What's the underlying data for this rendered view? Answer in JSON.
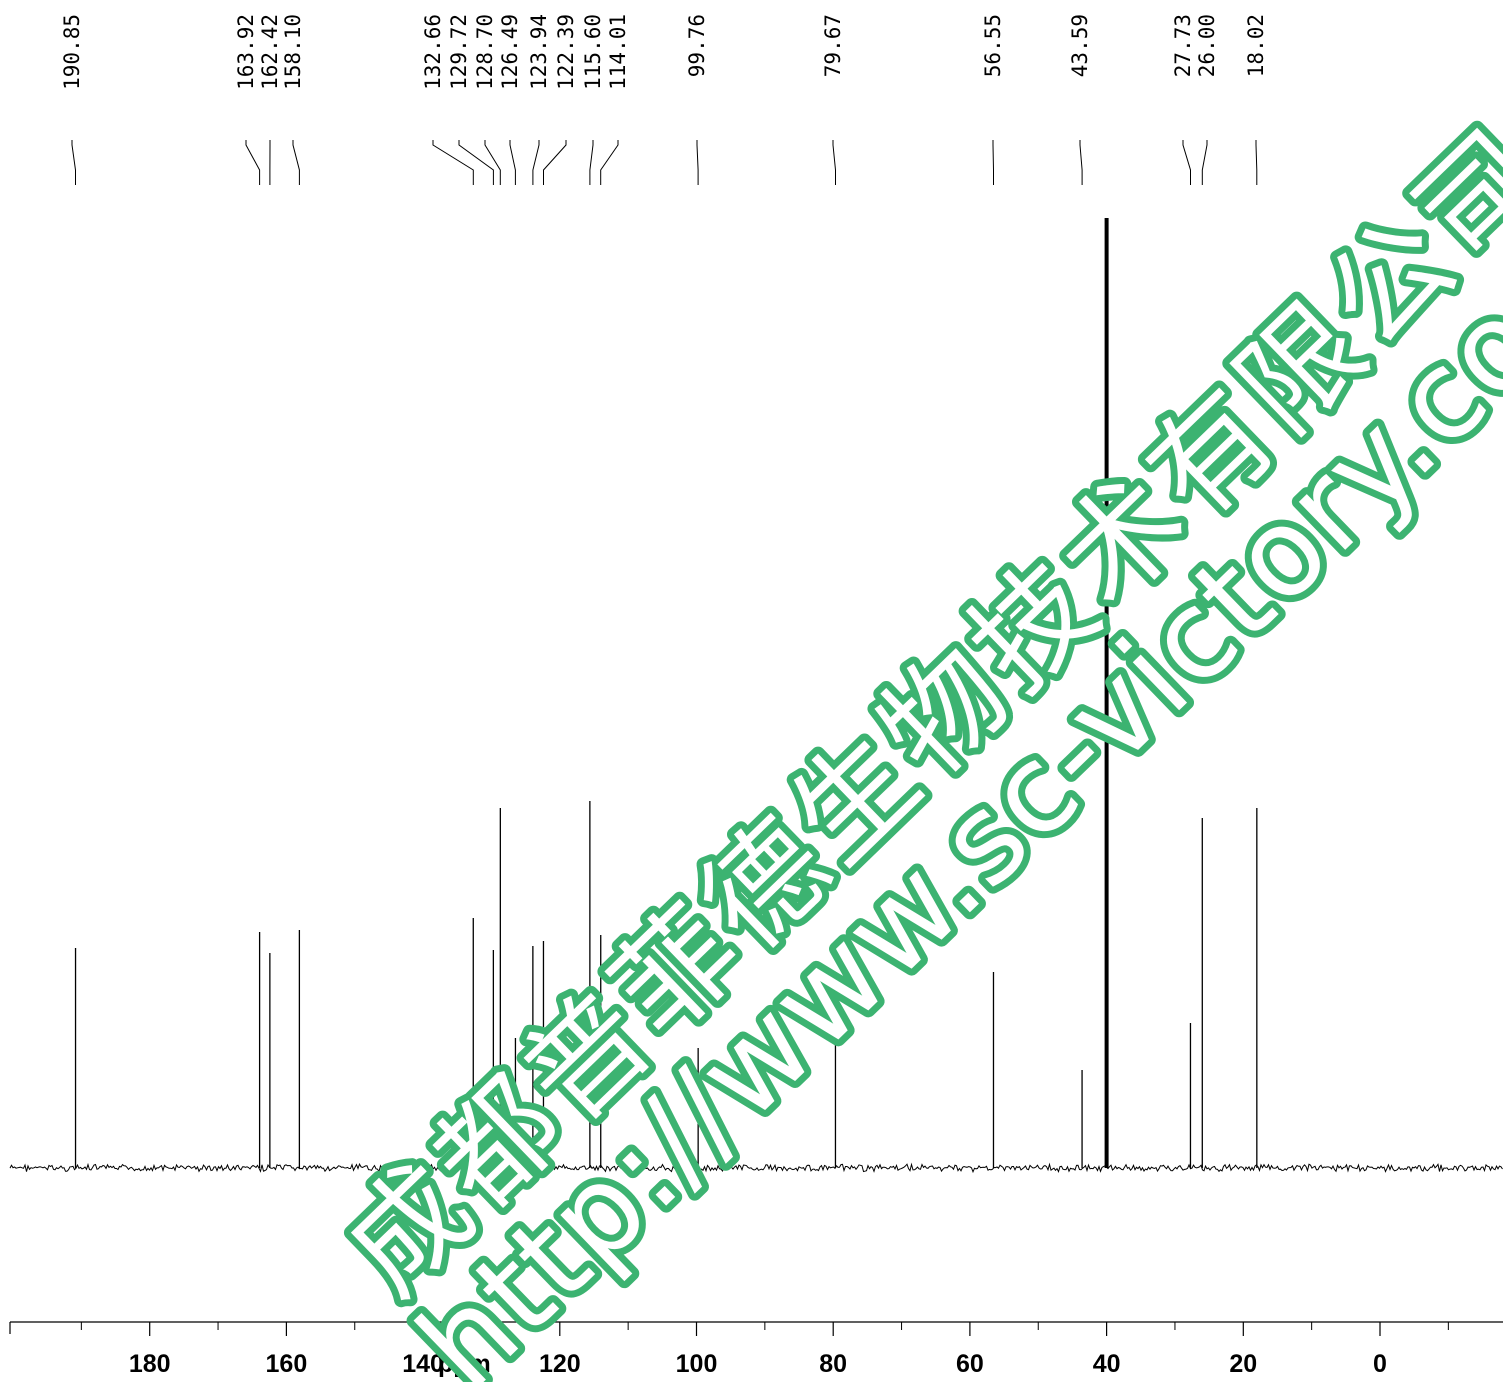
{
  "chart_data": {
    "type": "line",
    "title": "",
    "xlabel": "ppm",
    "ylabel": "",
    "xlim": [
      199,
      -18
    ],
    "x_reversed": true,
    "x_ticks_major": [
      180,
      160,
      140,
      120,
      100,
      80,
      60,
      40,
      20,
      0
    ],
    "x_ticks_major_labels": [
      "180",
      "160",
      "140",
      "120",
      "100",
      "80",
      "60",
      "40",
      "20",
      "0"
    ],
    "x_ticks_minor": [
      190,
      170,
      150,
      130,
      110,
      90,
      70,
      50,
      30,
      10,
      -10
    ],
    "grid": false,
    "legend": "none",
    "peak_labels": [
      "190.85",
      "163.92",
      "162.42",
      "158.10",
      "132.66",
      "129.72",
      "128.70",
      "126.49",
      "123.94",
      "122.39",
      "115.60",
      "114.01",
      "99.76",
      "79.67",
      "56.55",
      "43.59",
      "27.73",
      "26.00",
      "18.02"
    ],
    "peaks": [
      {
        "ppm": 190.85,
        "height": 0.22
      },
      {
        "ppm": 163.92,
        "height": 0.236
      },
      {
        "ppm": 162.42,
        "height": 0.215
      },
      {
        "ppm": 158.1,
        "height": 0.238
      },
      {
        "ppm": 132.66,
        "height": 0.25
      },
      {
        "ppm": 129.72,
        "height": 0.218
      },
      {
        "ppm": 128.7,
        "height": 0.36
      },
      {
        "ppm": 126.49,
        "height": 0.13
      },
      {
        "ppm": 123.94,
        "height": 0.222
      },
      {
        "ppm": 122.39,
        "height": 0.227
      },
      {
        "ppm": 115.6,
        "height": 0.367
      },
      {
        "ppm": 114.01,
        "height": 0.233
      },
      {
        "ppm": 99.76,
        "height": 0.12
      },
      {
        "ppm": 79.67,
        "height": 0.125
      },
      {
        "ppm": 56.55,
        "height": 0.196
      },
      {
        "ppm": 43.59,
        "height": 0.098
      },
      {
        "ppm": 40.0,
        "height": 0.95
      },
      {
        "ppm": 27.73,
        "height": 0.145
      },
      {
        "ppm": 26.0,
        "height": 0.35
      },
      {
        "ppm": 18.02,
        "height": 0.36
      }
    ]
  },
  "watermark": {
    "company": "成都普菲德生物技术有限公司",
    "url": "http://www.sc-victory.com",
    "color": "#3cb371"
  },
  "colors": {
    "trace": "#000000",
    "axis": "#000000",
    "background": "#ffffff"
  }
}
